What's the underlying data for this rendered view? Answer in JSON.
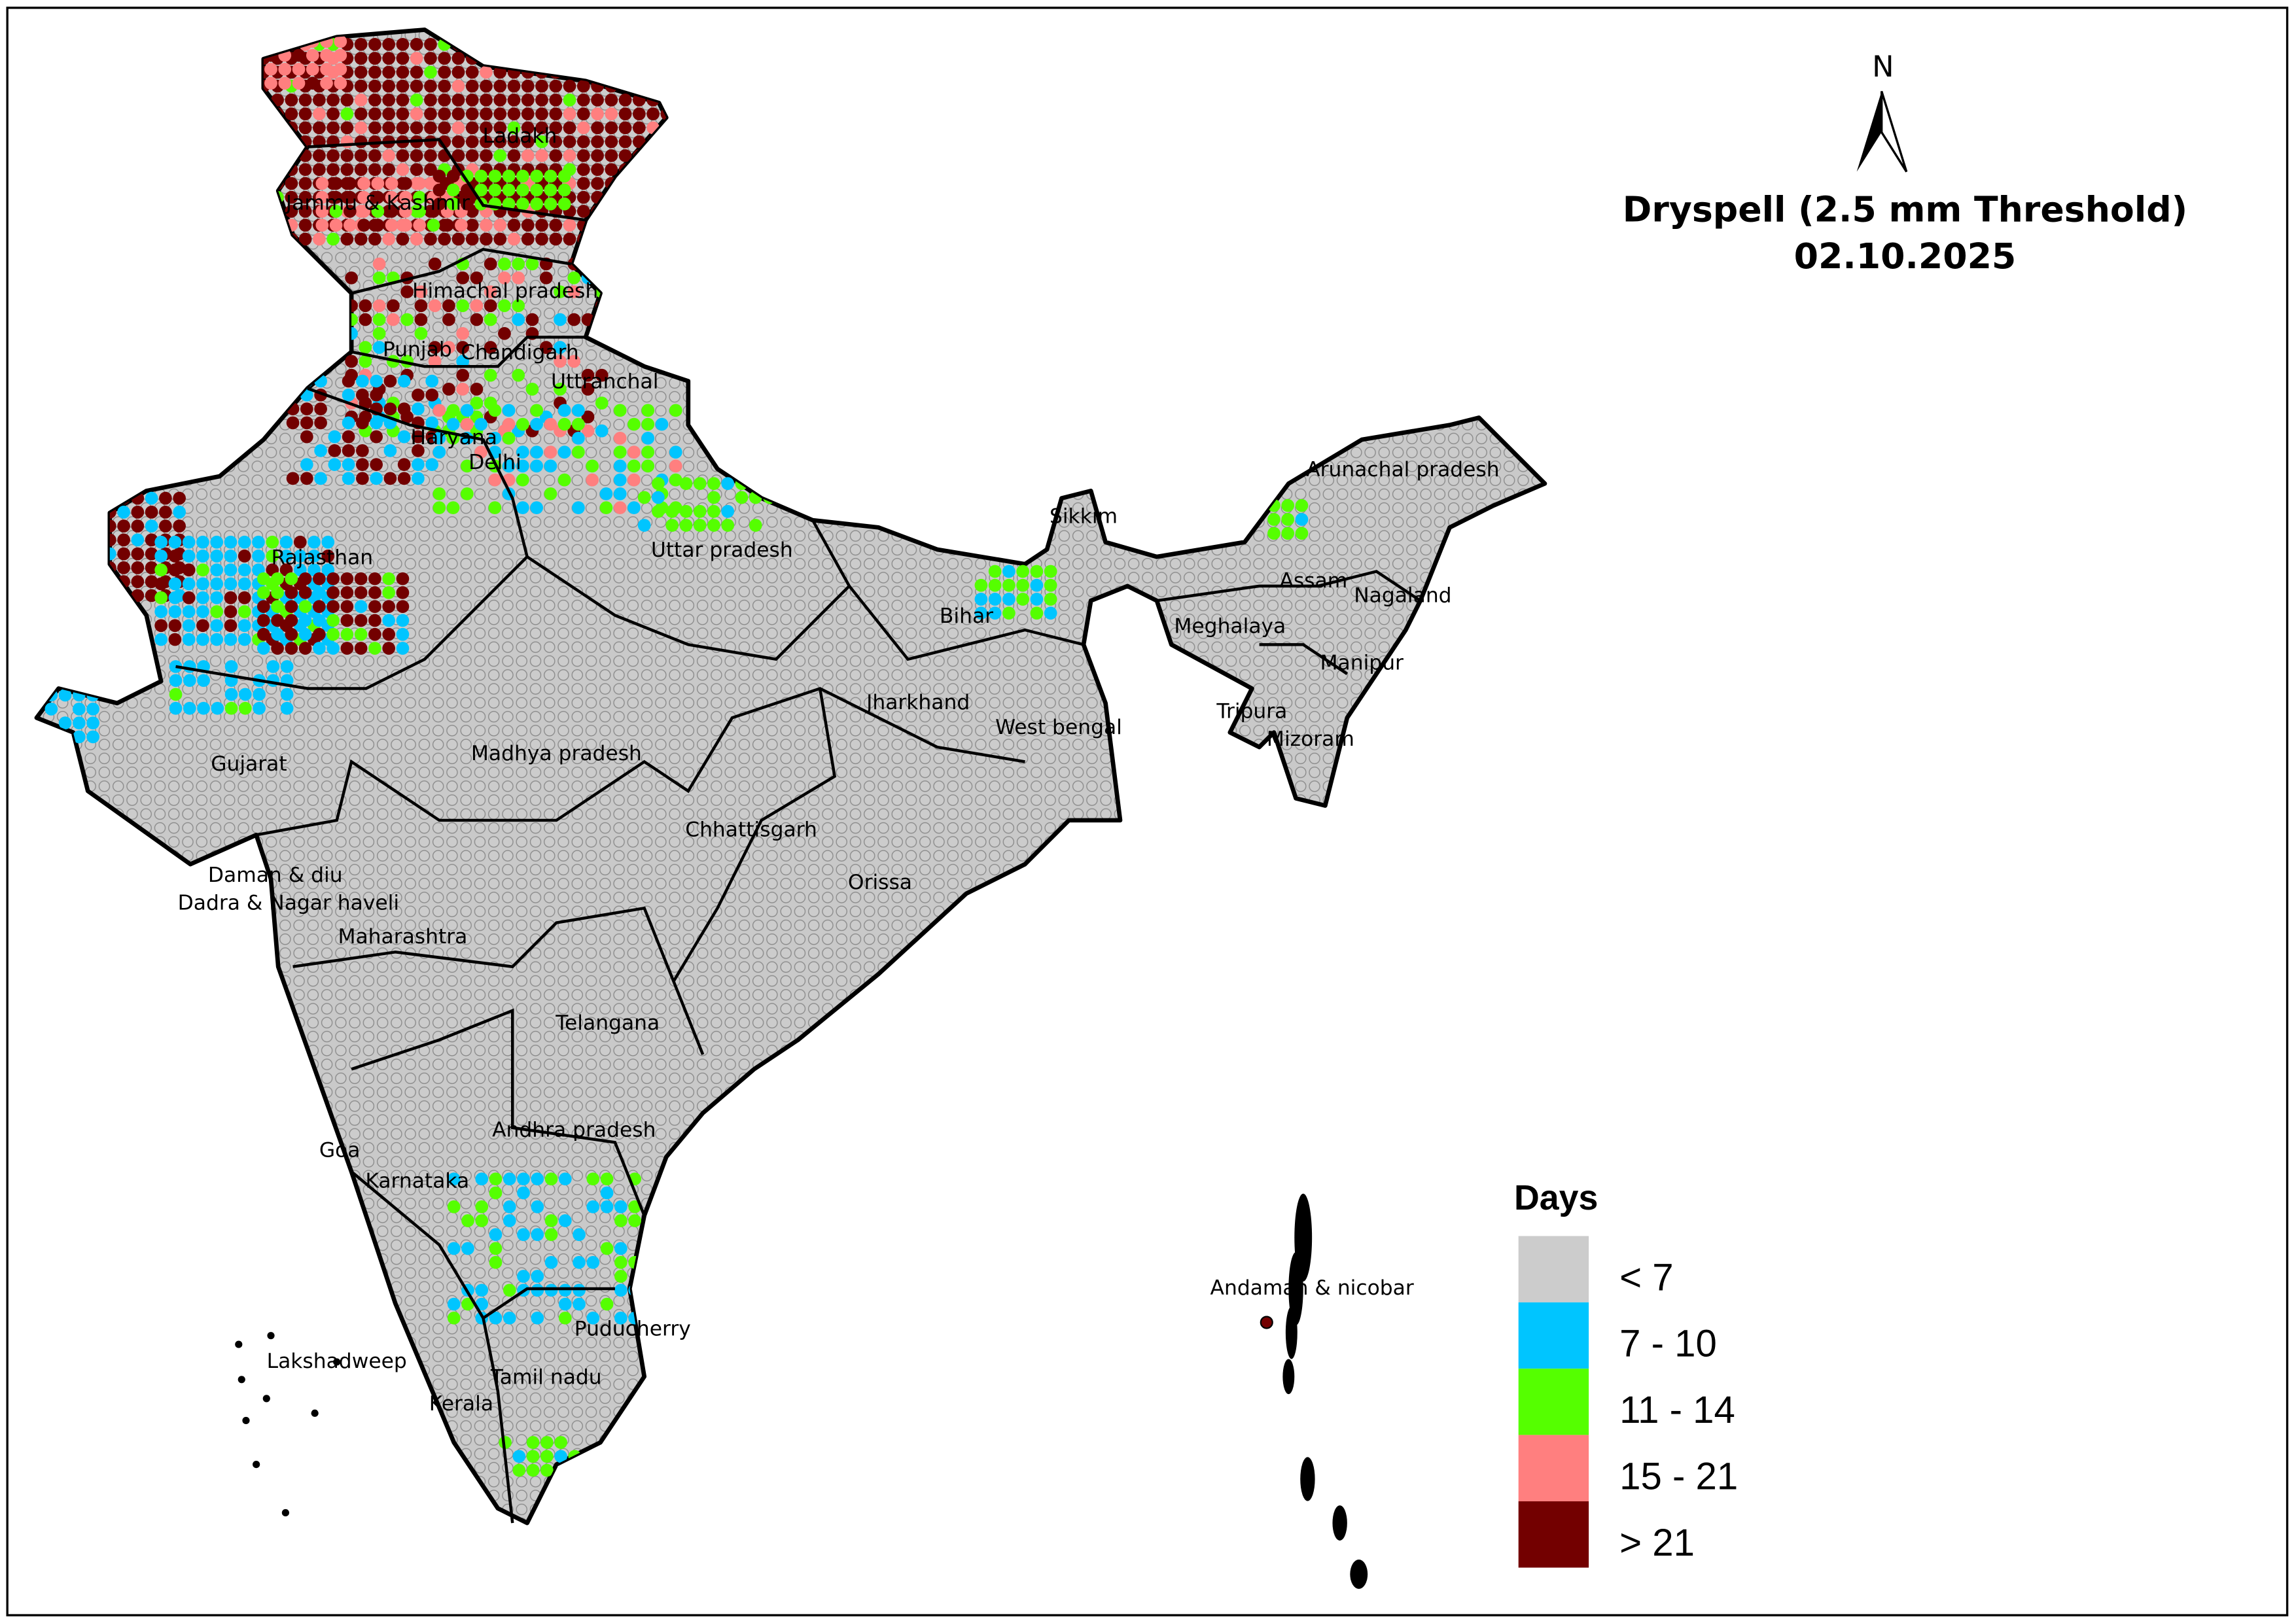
{
  "title": "Dryspell (2.5 mm Threshold)",
  "date": "02.10.2025",
  "north_arrow": {
    "label": "N"
  },
  "legend": {
    "title": "Days",
    "items": [
      {
        "label": "< 7",
        "color": "#CCCCCC"
      },
      {
        "label": "7 - 10",
        "color": "#00C5FF"
      },
      {
        "label": "11 - 14",
        "color": "#55FF00"
      },
      {
        "label": "15 - 21",
        "color": "#FF7F7F"
      },
      {
        "label": "> 21",
        "color": "#730000"
      }
    ]
  },
  "states": [
    "Ladakh",
    "Jammu & Kashmir",
    "Himachal pradesh",
    "Punjab",
    "Chandigarh",
    "Uttranchal",
    "Haryana",
    "Delhi",
    "Rajasthan",
    "Uttar pradesh",
    "Sikkim",
    "Arunachal pradesh",
    "Assam",
    "Nagaland",
    "Meghalaya",
    "Bihar",
    "Manipur",
    "Jharkhand",
    "West bengal",
    "Tripura",
    "Mizoram",
    "Gujarat",
    "Madhya pradesh",
    "Chhattisgarh",
    "Orissa",
    "Daman & diu",
    "Dadra & Nagar haveli",
    "Maharashtra",
    "Telangana",
    "Andhra pradesh",
    "Goa",
    "Karnataka",
    "Puducherry",
    "Lakshadweep",
    "Tamil nadu",
    "Kerala",
    "Andaman & nicobar"
  ]
}
